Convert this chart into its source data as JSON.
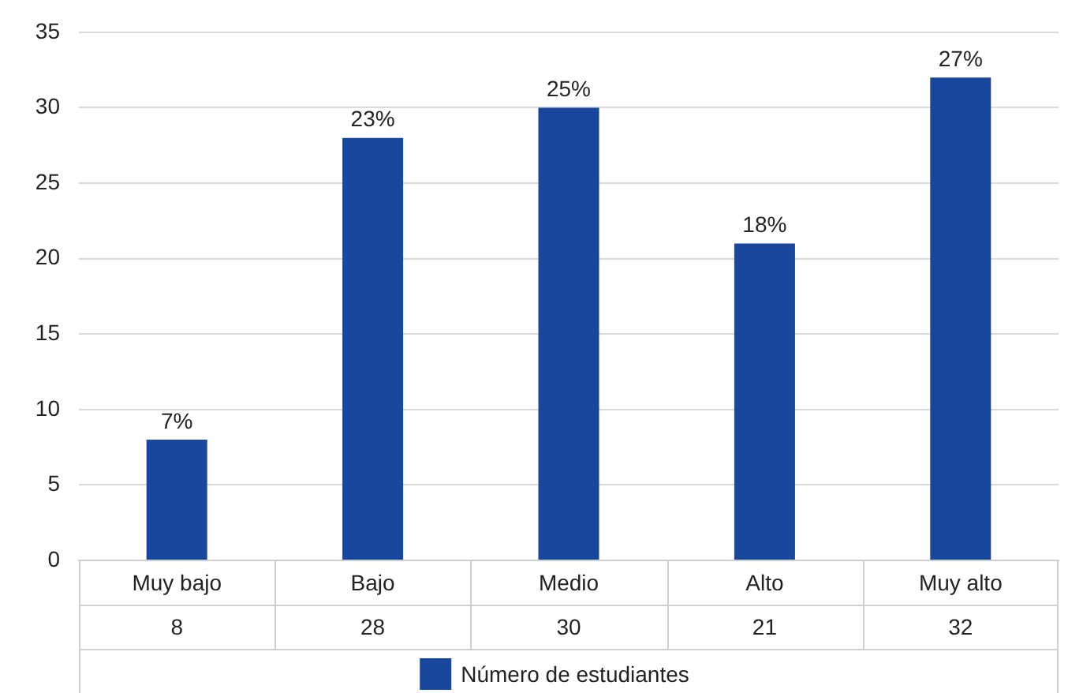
{
  "chart_data": {
    "type": "bar",
    "categories": [
      "Muy bajo",
      "Bajo",
      "Medio",
      "Alto",
      "Muy alto"
    ],
    "series": [
      {
        "name": "Número de estudiantes",
        "color": "#1a479e",
        "values": [
          8,
          28,
          30,
          21,
          32
        ],
        "value_labels": [
          "8",
          "28",
          "30",
          "21",
          "32"
        ]
      }
    ],
    "annotations": [
      {
        "text": "7%",
        "x": "Muy bajo",
        "y": 8
      },
      {
        "text": "23%",
        "x": "Bajo",
        "y": 28
      },
      {
        "text": "25%",
        "x": "Medio",
        "y": 30
      },
      {
        "text": "18%",
        "x": "Alto",
        "y": 21
      },
      {
        "text": "27%",
        "x": "Muy alto",
        "y": 32
      }
    ],
    "ylim": [
      0,
      35
    ],
    "yticks": [
      0,
      5,
      10,
      15,
      20,
      25,
      30,
      35
    ],
    "grid": "y",
    "legend": "bottom"
  }
}
